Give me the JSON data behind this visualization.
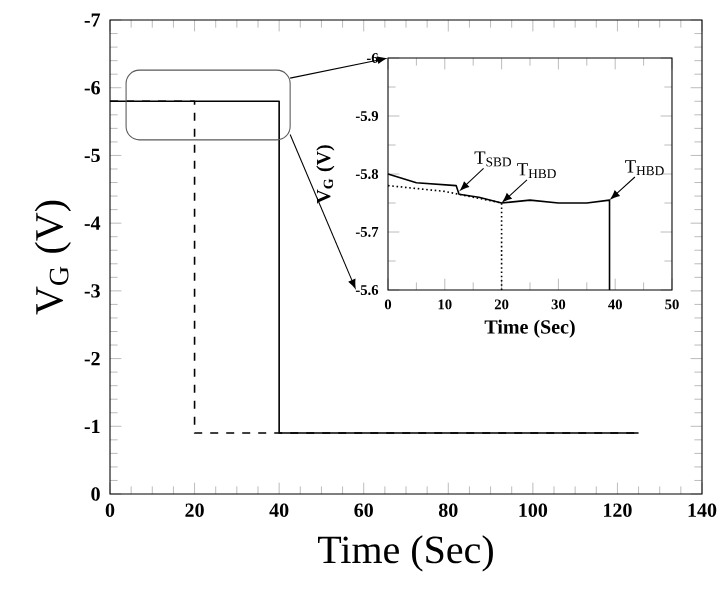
{
  "chart_data": [
    {
      "type": "line",
      "xlabel": "Time (Sec)",
      "ylabel": "V$_{G}$ (V)",
      "xlim": [
        0,
        140
      ],
      "ylim": [
        0,
        -7
      ],
      "xticks": [
        0,
        20,
        40,
        60,
        80,
        100,
        120,
        140
      ],
      "yticks": [
        0,
        -1,
        -2,
        -3,
        -4,
        -5,
        -6,
        -7
      ],
      "series": [
        {
          "color": "#000000",
          "line_style": "solid",
          "x": [
            0,
            40,
            40,
            125
          ],
          "values": [
            -5.8,
            -5.8,
            -0.9,
            -0.9
          ]
        },
        {
          "color": "#000000",
          "line_style": "dashed",
          "x": [
            0,
            20,
            20,
            125
          ],
          "values": [
            -5.8,
            -5.8,
            -0.9,
            -0.9
          ]
        }
      ]
    },
    {
      "type": "line",
      "xlabel": "Time (Sec)",
      "ylabel": "V$_{G}$ (V)",
      "xlim": [
        0,
        50
      ],
      "ylim": [
        -5.6,
        -6
      ],
      "xticks": [
        0,
        10,
        20,
        30,
        40,
        50
      ],
      "yticks": [
        -5.6,
        -5.7,
        -5.8,
        -5.9,
        -6
      ],
      "annotations": [
        {
          "text": "T$_{SBD}$",
          "x": 12.5,
          "y": -5.77
        },
        {
          "text": "T$_{HBD}$",
          "x": 20,
          "y": -5.75
        },
        {
          "text": "T$_{HBD}$",
          "x": 39,
          "y": -5.755
        }
      ],
      "series": [
        {
          "color": "#000000",
          "line_style": "solid",
          "x": [
            0,
            5,
            12,
            12.5,
            16,
            20,
            25,
            30,
            35,
            39,
            39
          ],
          "values": [
            -5.8,
            -5.785,
            -5.78,
            -5.765,
            -5.76,
            -5.75,
            -5.755,
            -5.75,
            -5.75,
            -5.755,
            -5.6
          ]
        },
        {
          "color": "#000000",
          "line_style": "dotted",
          "x": [
            0,
            5,
            10,
            15,
            20,
            20
          ],
          "values": [
            -5.78,
            -5.775,
            -5.77,
            -5.76,
            -5.75,
            -5.6
          ]
        }
      ]
    }
  ]
}
